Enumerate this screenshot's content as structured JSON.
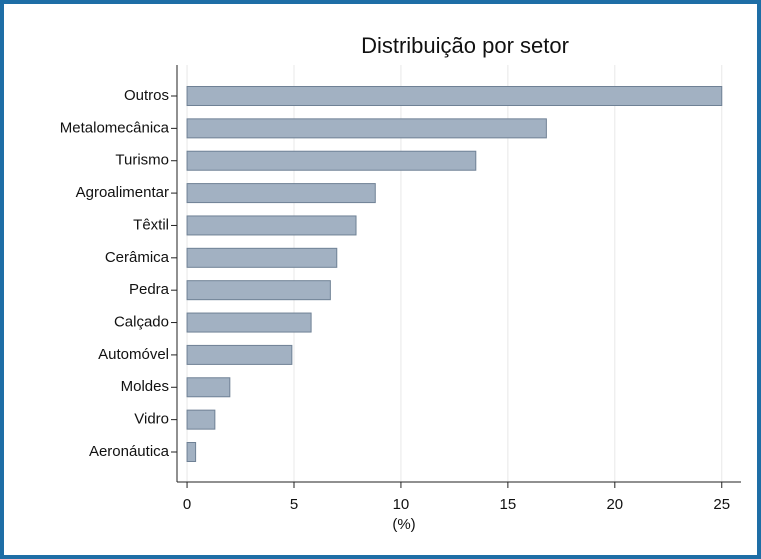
{
  "chart_data": {
    "type": "barh",
    "title": "Distribuição por setor",
    "x_label": "(%)",
    "categories": [
      "Outros",
      "Metalomecânica",
      "Turismo",
      "Agroalimentar",
      "Têxtil",
      "Cerâmica",
      "Pedra",
      "Calçado",
      "Automóvel",
      "Moldes",
      "Vidro",
      "Aeronáutica"
    ],
    "values": [
      25.0,
      16.8,
      13.5,
      8.8,
      7.9,
      7.0,
      6.7,
      5.8,
      4.9,
      2.0,
      1.3,
      0.4
    ],
    "color": "#a2b1c2",
    "xlim": [
      -0.47,
      25.9
    ],
    "xticks": [
      0,
      5,
      10,
      15,
      20,
      25
    ],
    "grid": true
  }
}
